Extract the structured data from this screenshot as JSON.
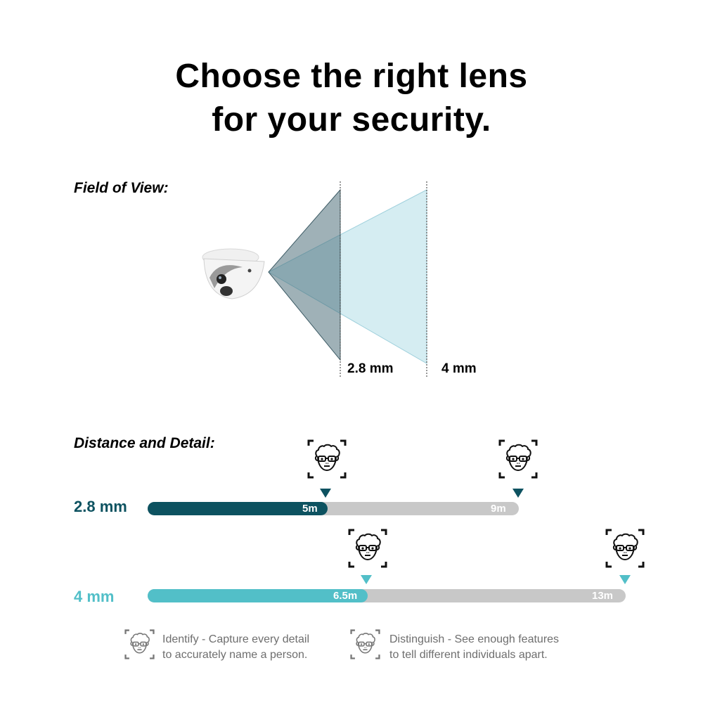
{
  "title": {
    "line1": "Choose the right lens",
    "line2": "for your security."
  },
  "field_of_view": {
    "heading": "Field of View:",
    "lenses": [
      {
        "label": "2.8 mm",
        "color": "#56747e"
      },
      {
        "label": "4 mm",
        "color": "#b9e1ea"
      }
    ]
  },
  "distance_detail": {
    "heading": "Distance and Detail:",
    "rows": [
      {
        "label": "2.8 mm",
        "color": "#0d5260",
        "identify_label": "5m",
        "identify_m": 5,
        "distinguish_label": "9m",
        "distinguish_m": 9
      },
      {
        "label": "4 mm",
        "color": "#52bfc8",
        "identify_label": "6.5m",
        "identify_m": 6.5,
        "distinguish_label": "13m",
        "distinguish_m": 13
      }
    ],
    "track_color": "#c8c8c8"
  },
  "legend": [
    {
      "icon": "identify-face-icon",
      "line1": "Identify - Capture every detail",
      "line2": "to accurately name a person."
    },
    {
      "icon": "distinguish-face-icon",
      "line1": "Distinguish - See enough features",
      "line2": "to tell different individuals apart."
    }
  ]
}
